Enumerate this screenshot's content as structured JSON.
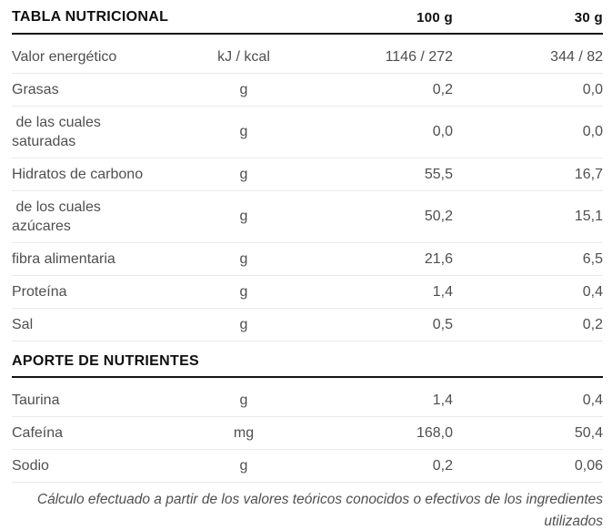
{
  "nutrition_table": {
    "title": "TABLA NUTRICIONAL",
    "columns": {
      "per_100": "100 g",
      "per_30": "30 g"
    },
    "rows": [
      {
        "label": "Valor energético",
        "unit": "kJ / kcal",
        "per_100": "1146 / 272",
        "per_30": "344 / 82"
      },
      {
        "label": "Grasas",
        "unit": "g",
        "per_100": "0,2",
        "per_30": "0,0"
      },
      {
        "label": " de las cuales\nsaturadas",
        "unit": "g",
        "per_100": "0,0",
        "per_30": "0,0"
      },
      {
        "label": "Hidratos de carbono",
        "unit": "g",
        "per_100": "55,5",
        "per_30": "16,7"
      },
      {
        "label": " de los cuales\nazúcares",
        "unit": "g",
        "per_100": "50,2",
        "per_30": "15,1"
      },
      {
        "label": "fibra alimentaria",
        "unit": "g",
        "per_100": "21,6",
        "per_30": "6,5"
      },
      {
        "label": "Proteína",
        "unit": "g",
        "per_100": "1,4",
        "per_30": "0,4"
      },
      {
        "label": "Sal",
        "unit": "g",
        "per_100": "0,5",
        "per_30": "0,2"
      }
    ],
    "section2": {
      "title": "APORTE DE NUTRIENTES",
      "rows": [
        {
          "label": "Taurina",
          "unit": "g",
          "per_100": "1,4",
          "per_30": "0,4"
        },
        {
          "label": "Cafeína",
          "unit": "mg",
          "per_100": "168,0",
          "per_30": "50,4"
        },
        {
          "label": "Sodio",
          "unit": "g",
          "per_100": "0,2",
          "per_30": "0,06"
        }
      ]
    },
    "footnote": "Cálculo efectuado a partir de los valores teóricos conocidos o efectivos de los ingredientes utilizados"
  },
  "colors": {
    "heading": "#0f0f0f",
    "body_text": "#4f4f4f",
    "divider": "#e9e9e9",
    "heavy_rule": "#121212"
  }
}
